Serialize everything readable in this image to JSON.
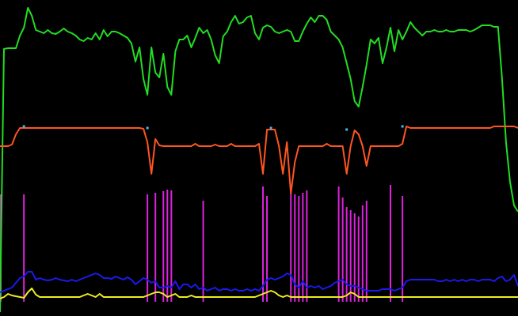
{
  "chart_data": {
    "type": "line",
    "grid": false,
    "background": "#000000",
    "x": [
      0,
      1,
      2,
      3,
      4,
      5,
      6,
      7,
      8,
      9,
      10,
      11,
      12,
      13,
      14,
      15,
      16,
      17,
      18,
      19,
      20,
      21,
      22,
      23,
      24,
      25,
      26,
      27,
      28,
      29,
      30,
      31,
      32,
      33,
      34,
      35,
      36,
      37,
      38,
      39,
      40,
      41,
      42,
      43,
      44,
      45,
      46,
      47,
      48,
      49,
      50,
      51,
      52,
      53,
      54,
      55,
      56,
      57,
      58,
      59,
      60,
      61,
      62,
      63,
      64,
      65,
      66,
      67,
      68,
      69,
      70,
      71,
      72,
      73,
      74,
      75,
      76,
      77,
      78,
      79,
      80,
      81,
      82,
      83,
      84,
      85,
      86,
      87,
      88,
      89,
      90,
      91,
      92,
      93,
      94,
      95,
      96,
      97,
      98,
      99,
      100,
      101,
      102,
      103,
      104,
      105,
      106,
      107,
      108,
      109,
      110,
      111,
      112,
      113,
      114,
      115,
      116,
      117,
      118,
      119,
      120,
      121,
      122,
      123,
      124,
      125,
      126,
      127,
      128,
      129,
      130
    ],
    "ylim": [
      0,
      400
    ],
    "series": [
      {
        "color": "#22dd22",
        "values": [
          5,
          338,
          339,
          339,
          339,
          355,
          365,
          390,
          380,
          362,
          360,
          358,
          362,
          358,
          357,
          360,
          364,
          360,
          358,
          355,
          350,
          348,
          352,
          350,
          358,
          350,
          362,
          354,
          360,
          360,
          358,
          355,
          352,
          345,
          322,
          340,
          300,
          280,
          340,
          308,
          302,
          332,
          290,
          280,
          335,
          350,
          350,
          355,
          340,
          352,
          365,
          358,
          362,
          350,
          330,
          320,
          354,
          360,
          372,
          380,
          370,
          372,
          378,
          380,
          358,
          350,
          365,
          368,
          366,
          360,
          358,
          360,
          362,
          360,
          348,
          348,
          360,
          370,
          378,
          372,
          380,
          380,
          375,
          360,
          355,
          350,
          340,
          320,
          300,
          272,
          265,
          290,
          318,
          350,
          345,
          352,
          320,
          340,
          365,
          335,
          362,
          350,
          360,
          372,
          365,
          360,
          355,
          360,
          360,
          362,
          360,
          360,
          362,
          360,
          360,
          362,
          362,
          362,
          360,
          362,
          365,
          368,
          368,
          368,
          366,
          366,
          300,
          220,
          170,
          140,
          132
        ]
      },
      {
        "color": "#ff5522",
        "values": [
          215,
          215,
          215,
          217,
          230,
          238,
          238,
          238,
          238,
          238,
          238,
          238,
          238,
          238,
          238,
          238,
          238,
          238,
          238,
          238,
          238,
          238,
          238,
          238,
          238,
          238,
          238,
          238,
          238,
          238,
          238,
          238,
          238,
          238,
          238,
          238,
          237,
          220,
          180,
          224,
          216,
          215,
          215,
          215,
          215,
          215,
          215,
          215,
          215,
          218,
          215,
          215,
          215,
          215,
          217,
          215,
          215,
          215,
          218,
          215,
          215,
          215,
          215,
          215,
          215,
          218,
          180,
          236,
          236,
          236,
          215,
          180,
          220,
          155,
          195,
          215,
          215,
          215,
          215,
          215,
          215,
          215,
          218,
          215,
          215,
          215,
          215,
          180,
          215,
          235,
          230,
          215,
          190,
          215,
          215,
          215,
          215,
          215,
          215,
          215,
          215,
          218,
          240,
          238,
          238,
          238,
          238,
          238,
          238,
          238,
          238,
          238,
          238,
          238,
          238,
          238,
          238,
          238,
          238,
          238,
          238,
          238,
          238,
          238,
          240,
          240,
          240,
          240,
          240,
          240,
          238
        ]
      },
      {
        "color": "#1a1aee",
        "values": [
          30,
          32,
          34,
          36,
          42,
          48,
          50,
          56,
          56,
          46,
          48,
          46,
          45,
          46,
          48,
          46,
          45,
          44,
          46,
          44,
          46,
          48,
          50,
          52,
          54,
          52,
          48,
          48,
          47,
          50,
          48,
          46,
          49,
          46,
          40,
          44,
          48,
          46,
          42,
          44,
          36,
          36,
          38,
          36,
          44,
          34,
          40,
          40,
          36,
          40,
          34,
          36,
          32,
          34,
          36,
          32,
          34,
          34,
          32,
          34,
          32,
          32,
          34,
          32,
          34,
          32,
          38,
          46,
          48,
          46,
          48,
          50,
          54,
          52,
          40,
          36,
          44,
          36,
          38,
          36,
          38,
          34,
          36,
          38,
          42,
          44,
          46,
          40,
          38,
          38,
          36,
          34,
          32,
          32,
          32,
          32,
          34,
          34,
          34,
          32,
          34,
          36,
          44,
          46,
          46,
          46,
          46,
          46,
          46,
          46,
          44,
          44,
          46,
          44,
          46,
          44,
          46,
          44,
          46,
          46,
          44,
          46,
          46,
          46,
          44,
          48,
          50,
          44,
          46,
          52,
          38
        ]
      },
      {
        "color": "#eeee22",
        "values": [
          22,
          24,
          28,
          26,
          25,
          24,
          23,
          30,
          35,
          27,
          24,
          24,
          24,
          24,
          24,
          24,
          24,
          24,
          24,
          24,
          24,
          26,
          28,
          26,
          24,
          28,
          24,
          24,
          24,
          24,
          24,
          24,
          24,
          24,
          24,
          24,
          24,
          26,
          28,
          30,
          30,
          28,
          24,
          26,
          28,
          24,
          24,
          24,
          26,
          24,
          24,
          24,
          24,
          24,
          24,
          24,
          24,
          24,
          24,
          24,
          24,
          24,
          24,
          24,
          24,
          26,
          28,
          30,
          32,
          30,
          26,
          24,
          26,
          24,
          24,
          24,
          24,
          24,
          24,
          24,
          24,
          24,
          24,
          24,
          24,
          24,
          24,
          26,
          30,
          28,
          24,
          24,
          24,
          24,
          24,
          24,
          24,
          24,
          24,
          24,
          24,
          24,
          24,
          24,
          24,
          24,
          24,
          24,
          24,
          24,
          24,
          24,
          24,
          24,
          24,
          24,
          24,
          24,
          24,
          24,
          24,
          24,
          24,
          24,
          24,
          24,
          24,
          24,
          24,
          24,
          24
        ]
      }
    ],
    "spikes": {
      "color": "#dd22dd",
      "baseline": 18,
      "x": [
        0,
        6,
        37,
        39,
        41,
        42,
        43,
        51,
        66,
        67,
        73,
        74,
        75,
        76,
        77,
        85,
        86,
        87,
        88,
        89,
        90,
        91,
        92,
        98,
        101
      ],
      "heights": [
        136,
        136,
        136,
        138,
        140,
        142,
        141,
        128,
        146,
        134,
        138,
        136,
        134,
        138,
        141,
        146,
        132,
        120,
        116,
        112,
        108,
        122,
        128,
        148,
        134
      ]
    },
    "markers": {
      "color": "#44bbee",
      "points": [
        [
          6,
          240
        ],
        [
          101,
          240
        ],
        [
          37,
          238
        ],
        [
          68,
          238
        ],
        [
          87,
          236
        ]
      ]
    }
  }
}
